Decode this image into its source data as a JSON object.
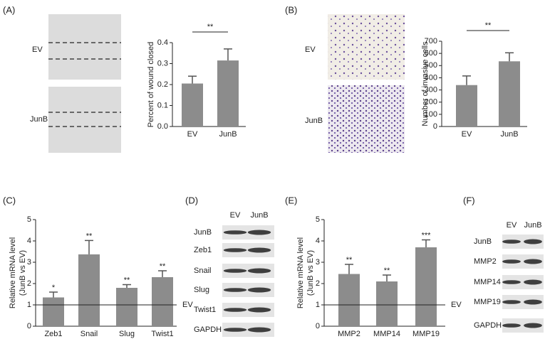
{
  "panels": [
    "(A)",
    "(B)",
    "(C)",
    "(D)",
    "(E)",
    "(F)"
  ],
  "wound_images": {
    "rows": [
      "EV",
      "JunB"
    ]
  },
  "invasion_images": {
    "rows": [
      "EV",
      "JunB"
    ]
  },
  "chart_data": [
    {
      "type": "bar",
      "ylabel": [
        "Percent of wound closed"
      ],
      "categories": [
        "EV",
        "JunB"
      ],
      "values": [
        0.205,
        0.315
      ],
      "errors": [
        0.035,
        0.055
      ],
      "color": "#8c8c8c",
      "ylim": [
        0,
        0.4
      ],
      "yticks": [
        {
          "value": 0,
          "label": "0.0"
        },
        0.1,
        0.2,
        0.3,
        0.4
      ],
      "comparison": {
        "label": "**"
      }
    },
    {
      "type": "bar",
      "ylabel": [
        "Number of invasive cells"
      ],
      "categories": [
        "EV",
        "JunB"
      ],
      "values": [
        340,
        535
      ],
      "errors": [
        75,
        70
      ],
      "color": "#8c8c8c",
      "ylim": [
        0,
        700
      ],
      "yticks": [
        0,
        100,
        200,
        300,
        400,
        500,
        600,
        700
      ],
      "comparison": {
        "label": "**"
      }
    },
    {
      "type": "bar",
      "ylabel": [
        "Relative mRNA level",
        "(JunB vs EV)"
      ],
      "categories": [
        "Zeb1",
        "Snail",
        "Slug",
        "Twist1"
      ],
      "values": [
        1.35,
        3.37,
        1.8,
        2.3
      ],
      "errors": [
        0.25,
        0.65,
        0.15,
        0.3
      ],
      "color": "#8c8c8c",
      "ylim": [
        0,
        5
      ],
      "yticks": [
        0,
        1,
        2,
        3,
        4,
        5
      ],
      "annotations": [
        "*",
        "**",
        "**",
        "**"
      ],
      "reference_line": {
        "value": 1,
        "label": "EV"
      }
    },
    {
      "type": "bar",
      "ylabel": [
        "Relative mRNA level",
        "(JunB vs EV)"
      ],
      "categories": [
        "MMP2",
        "MMP14",
        "MMP19"
      ],
      "values": [
        2.45,
        2.1,
        3.7
      ],
      "errors": [
        0.45,
        0.3,
        0.35
      ],
      "color": "#8c8c8c",
      "ylim": [
        0,
        5
      ],
      "yticks": [
        0,
        1,
        2,
        3,
        4,
        5
      ],
      "annotations": [
        "**",
        "**",
        "***"
      ],
      "reference_line": {
        "value": 1,
        "label": "EV"
      }
    }
  ],
  "blots": [
    {
      "lanes": [
        "EV",
        "JunB"
      ],
      "rows": [
        "JunB",
        "Zeb1",
        "Snail",
        "Slug",
        "Twist1",
        "GAPDH"
      ]
    },
    {
      "lanes": [
        "EV",
        "JunB"
      ],
      "rows": [
        "JunB",
        "MMP2",
        "MMP14",
        "MMP19",
        "GAPDH"
      ]
    }
  ]
}
